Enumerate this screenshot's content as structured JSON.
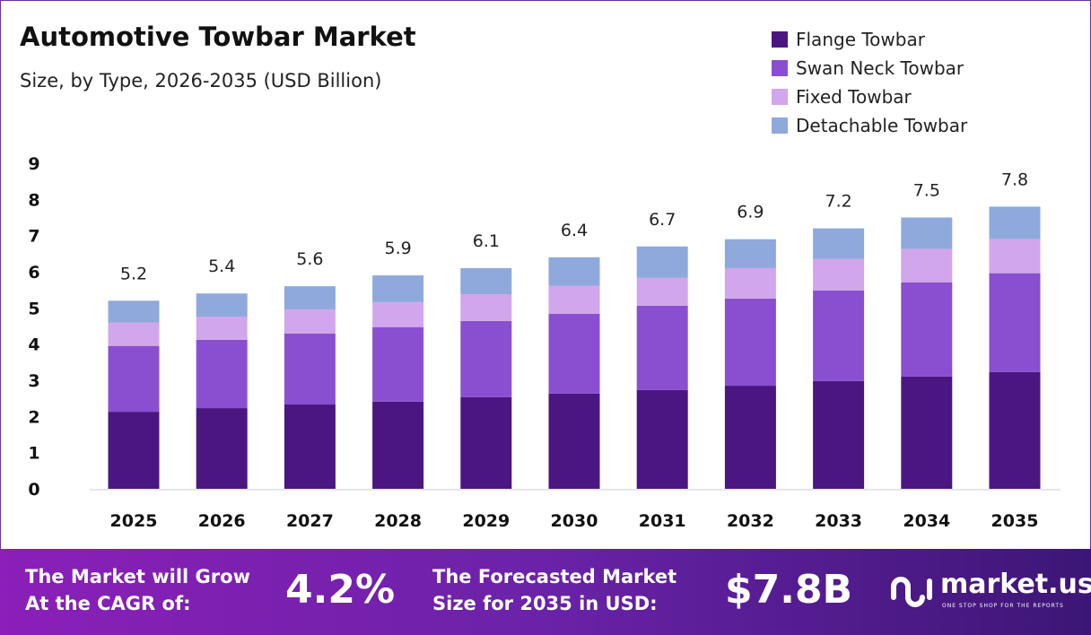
{
  "chart_data": {
    "type": "bar",
    "stacked": true,
    "title": "Automotive Towbar Market",
    "subtitle": "Size, by Type, 2026-2035 (USD Billion)",
    "categories": [
      "2025",
      "2026",
      "2027",
      "2028",
      "2029",
      "2030",
      "2031",
      "2032",
      "2033",
      "2034",
      "2035"
    ],
    "series": [
      {
        "name": "Flange Towbar",
        "color": "#4b1681",
        "values": [
          2.13,
          2.23,
          2.33,
          2.41,
          2.53,
          2.63,
          2.73,
          2.85,
          2.98,
          3.1,
          3.23
        ]
      },
      {
        "name": "Swan Neck Towbar",
        "color": "#8a4fd0",
        "values": [
          1.82,
          1.89,
          1.96,
          2.06,
          2.11,
          2.21,
          2.33,
          2.41,
          2.5,
          2.61,
          2.73
        ]
      },
      {
        "name": "Fixed Towbar",
        "color": "#d2a6ec",
        "values": [
          0.64,
          0.64,
          0.67,
          0.69,
          0.74,
          0.77,
          0.77,
          0.84,
          0.87,
          0.92,
          0.94
        ]
      },
      {
        "name": "Detachable Towbar",
        "color": "#8fa9dc",
        "values": [
          0.61,
          0.64,
          0.64,
          0.74,
          0.72,
          0.79,
          0.87,
          0.8,
          0.85,
          0.87,
          0.9
        ]
      }
    ],
    "totals": [
      "5.2",
      "5.4",
      "5.6",
      "5.9",
      "6.1",
      "6.4",
      "6.7",
      "6.9",
      "7.2",
      "7.5",
      "7.8"
    ],
    "yticks": [
      "0",
      "1",
      "2",
      "3",
      "4",
      "5",
      "6",
      "7",
      "8",
      "9"
    ],
    "ylim": [
      0,
      9
    ],
    "grid": false,
    "legend": "top-right"
  },
  "footer": {
    "cagr_text1": "The Market will Grow",
    "cagr_text2": "At the CAGR of:",
    "cagr_value": "4.2%",
    "size_text1": "The Forecasted Market",
    "size_text2": "Size for 2035 in USD:",
    "size_value": "$7.8B",
    "logo_name": "market.us",
    "logo_tagline": "ONE STOP SHOP FOR THE REPORTS"
  }
}
